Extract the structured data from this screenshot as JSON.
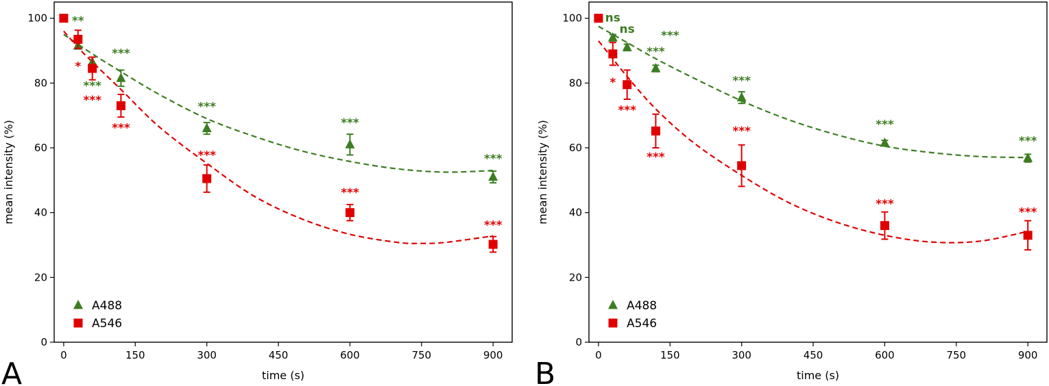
{
  "colors": {
    "a488": "#3c7d22",
    "a546": "#e00000"
  },
  "chart_data": [
    {
      "type": "scatter",
      "panel": "A",
      "xlabel": "time (s)",
      "ylabel": "mean intensity (%)",
      "xlim": [
        -20,
        940
      ],
      "ylim": [
        0,
        105
      ],
      "xticks": [
        0,
        150,
        300,
        450,
        600,
        750,
        900
      ],
      "yticks": [
        0,
        20,
        40,
        60,
        80,
        100
      ],
      "legend": {
        "position": "bottom-left",
        "entries": [
          "A488",
          "A546"
        ]
      },
      "series": [
        {
          "name": "A488",
          "marker": "triangle",
          "color": "#3c7d22",
          "x": [
            30,
            60,
            120,
            300,
            600,
            900
          ],
          "y": [
            91.5,
            86.5,
            81.5,
            66,
            61,
            51
          ],
          "err": [
            1,
            1.5,
            2.5,
            1.8,
            3.2,
            1.8
          ],
          "annotations": [
            {
              "x": 30,
              "y": 98,
              "text": "**"
            },
            {
              "x": 60,
              "y": 78,
              "text": "***"
            },
            {
              "x": 120,
              "y": 88,
              "text": "***"
            },
            {
              "x": 300,
              "y": 71.5,
              "text": "***"
            },
            {
              "x": 600,
              "y": 66.5,
              "text": "***"
            },
            {
              "x": 900,
              "y": 55.5,
              "text": "***"
            }
          ],
          "fit": {
            "x": [
              0,
              30,
              60,
              120,
              200,
              300,
              400,
              500,
              600,
              700,
              800,
              900
            ],
            "y": [
              95,
              92,
              89,
              83.5,
              76.5,
              69,
              63.5,
              59,
              55.8,
              53.5,
              52.5,
              53
            ]
          }
        },
        {
          "name": "A546",
          "marker": "square",
          "color": "#e00000",
          "x": [
            0,
            30,
            60,
            120,
            300,
            600,
            900
          ],
          "y": [
            100,
            93.5,
            84.5,
            73,
            50.5,
            40,
            30.2
          ],
          "err": [
            0,
            2.8,
            3.5,
            3.5,
            4.2,
            2.5,
            2.4
          ],
          "annotations": [
            {
              "x": 30,
              "y": 84,
              "text": "*"
            },
            {
              "x": 60,
              "y": 73.5,
              "text": "***"
            },
            {
              "x": 120,
              "y": 65,
              "text": "***"
            },
            {
              "x": 300,
              "y": 56.5,
              "text": "***"
            },
            {
              "x": 600,
              "y": 45,
              "text": "***"
            },
            {
              "x": 900,
              "y": 35,
              "text": "***"
            }
          ],
          "fit": {
            "x": [
              0,
              30,
              60,
              120,
              200,
              300,
              400,
              500,
              600,
              700,
              750,
              800,
              900
            ],
            "y": [
              96,
              91,
              86.5,
              78,
              66.5,
              55.2,
              45,
              38,
              33.3,
              30.8,
              30.5,
              30.8,
              32.8
            ]
          }
        }
      ]
    },
    {
      "type": "scatter",
      "panel": "B",
      "xlabel": "time (s)",
      "ylabel": "mean intensity (%)",
      "xlim": [
        -20,
        940
      ],
      "ylim": [
        0,
        105
      ],
      "xticks": [
        0,
        150,
        300,
        450,
        600,
        750,
        900
      ],
      "yticks": [
        0,
        20,
        40,
        60,
        80,
        100
      ],
      "legend": {
        "position": "bottom-left",
        "entries": [
          "A488",
          "A546"
        ]
      },
      "series": [
        {
          "name": "A488",
          "marker": "triangle",
          "color": "#3c7d22",
          "x": [
            30,
            60,
            120,
            300,
            600,
            900
          ],
          "y": [
            94,
            91,
            84.5,
            75.5,
            61.5,
            56.8
          ],
          "err": [
            1,
            1,
            1,
            1.8,
            0.8,
            1.2
          ],
          "annotations": [
            {
              "x": 30,
              "y": 99,
              "text": "ns"
            },
            {
              "x": 60,
              "y": 95.5,
              "text": "ns"
            },
            {
              "x": 120,
              "y": 88.5,
              "text": "***"
            },
            {
              "x": 150,
              "y": 93.5,
              "text": "***"
            },
            {
              "x": 300,
              "y": 79.5,
              "text": "***"
            },
            {
              "x": 600,
              "y": 66,
              "text": "***"
            },
            {
              "x": 900,
              "y": 61,
              "text": "***"
            }
          ],
          "fit": {
            "x": [
              0,
              30,
              60,
              120,
              200,
              300,
              400,
              500,
              600,
              700,
              800,
              900
            ],
            "y": [
              97.5,
              95,
              92.5,
              87.5,
              81.5,
              74.5,
              68.6,
              64,
              60.5,
              58.5,
              57.3,
              57
            ]
          }
        },
        {
          "name": "A546",
          "marker": "square",
          "color": "#e00000",
          "x": [
            0,
            30,
            60,
            120,
            300,
            600,
            900
          ],
          "y": [
            100,
            89,
            79.5,
            65.2,
            54.5,
            36,
            33
          ],
          "err": [
            0,
            3.5,
            4.5,
            5.2,
            6.4,
            4.2,
            4.5
          ],
          "annotations": [
            {
              "x": 30,
              "y": 79,
              "text": "*"
            },
            {
              "x": 60,
              "y": 70.5,
              "text": "***"
            },
            {
              "x": 120,
              "y": 56,
              "text": "***"
            },
            {
              "x": 300,
              "y": 64,
              "text": "***"
            },
            {
              "x": 600,
              "y": 41.5,
              "text": "***"
            },
            {
              "x": 900,
              "y": 39,
              "text": "***"
            }
          ],
          "fit": {
            "x": [
              0,
              30,
              60,
              120,
              200,
              300,
              400,
              500,
              600,
              700,
              800,
              900
            ],
            "y": [
              93,
              87.5,
              82,
              72,
              61.5,
              51.5,
              43,
              37,
              33,
              30.9,
              31.2,
              34.2
            ]
          }
        }
      ]
    }
  ],
  "panel_letters": [
    "A",
    "B"
  ]
}
